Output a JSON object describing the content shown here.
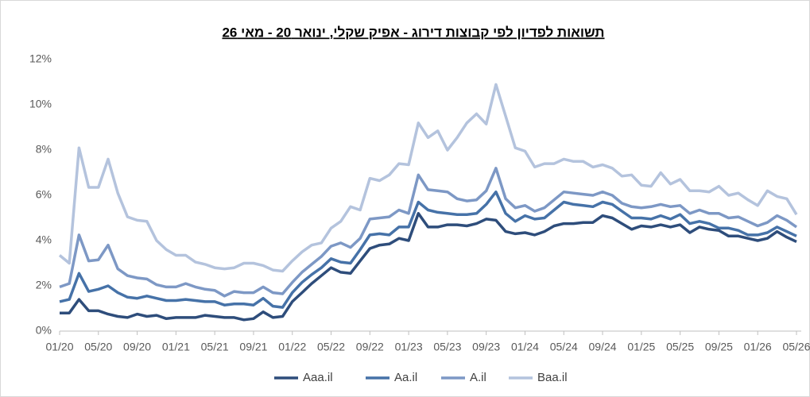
{
  "chart_data": {
    "type": "line",
    "title": "תשואות לפדיון לפי קבוצות דירוג - אפיק שקלי, ינואר 20 - מאי 26",
    "categories": [
      "01/20",
      null,
      null,
      null,
      "05/20",
      null,
      null,
      null,
      "09/20",
      null,
      null,
      null,
      "01/21",
      null,
      null,
      null,
      "05/21",
      null,
      null,
      null,
      "09/21",
      null,
      null,
      null,
      "01/22",
      null,
      null,
      null,
      "05/22",
      null,
      null,
      null,
      "09/22",
      null,
      null,
      null,
      "01/23",
      null,
      null,
      null,
      "05/23",
      null,
      null,
      null,
      "09/23",
      null,
      null,
      null,
      "01/24",
      null,
      null,
      null,
      "05/24",
      null,
      null,
      null,
      "09/24",
      null,
      null,
      null,
      "01/25",
      null,
      null,
      null,
      "05/25",
      null,
      null,
      null,
      "09/25",
      null,
      null,
      null,
      "01/26",
      null,
      null,
      null,
      "05/26"
    ],
    "series": [
      {
        "name": "Aaa.il",
        "color": "#2e4d7b",
        "values": [
          0.8,
          0.8,
          1.4,
          0.9,
          0.9,
          0.75,
          0.65,
          0.6,
          0.75,
          0.65,
          0.7,
          0.55,
          0.6,
          0.6,
          0.6,
          0.7,
          0.65,
          0.6,
          0.6,
          0.5,
          0.55,
          0.85,
          0.6,
          0.65,
          1.3,
          1.7,
          2.1,
          2.45,
          2.8,
          2.6,
          2.55,
          3.1,
          3.65,
          3.8,
          3.85,
          4.1,
          4.0,
          5.2,
          4.6,
          4.6,
          4.7,
          4.7,
          4.65,
          4.75,
          4.95,
          4.9,
          4.4,
          4.3,
          4.35,
          4.25,
          4.4,
          4.65,
          4.75,
          4.75,
          4.8,
          4.8,
          5.1,
          5.0,
          4.75,
          4.5,
          4.65,
          4.6,
          4.7,
          4.6,
          4.7,
          4.35,
          4.6,
          4.5,
          4.45,
          4.2,
          4.2,
          4.1,
          4.0,
          4.1,
          4.4,
          4.15,
          3.95
        ]
      },
      {
        "name": "Aa.il",
        "color": "#4672a8",
        "values": [
          1.3,
          1.4,
          2.55,
          1.75,
          1.85,
          2.0,
          1.7,
          1.5,
          1.45,
          1.55,
          1.45,
          1.35,
          1.35,
          1.4,
          1.35,
          1.3,
          1.3,
          1.15,
          1.2,
          1.2,
          1.15,
          1.45,
          1.1,
          1.05,
          1.7,
          2.15,
          2.5,
          2.8,
          3.2,
          3.05,
          3.0,
          3.6,
          4.25,
          4.3,
          4.25,
          4.6,
          4.6,
          5.7,
          5.35,
          5.25,
          5.2,
          5.15,
          5.15,
          5.2,
          5.6,
          6.15,
          5.2,
          4.85,
          5.1,
          4.95,
          5.0,
          5.35,
          5.7,
          5.6,
          5.55,
          5.5,
          5.7,
          5.6,
          5.3,
          5.0,
          5.0,
          4.95,
          5.1,
          4.95,
          5.15,
          4.75,
          4.85,
          4.75,
          4.55,
          4.55,
          4.45,
          4.25,
          4.25,
          4.35,
          4.6,
          4.4,
          4.2
        ]
      },
      {
        "name": "A.il",
        "color": "#7d98c5",
        "values": [
          1.95,
          2.1,
          4.25,
          3.1,
          3.15,
          3.8,
          2.75,
          2.45,
          2.35,
          2.3,
          2.05,
          1.95,
          1.95,
          2.1,
          1.95,
          1.85,
          1.8,
          1.55,
          1.75,
          1.7,
          1.7,
          1.95,
          1.7,
          1.65,
          2.15,
          2.6,
          2.95,
          3.3,
          3.75,
          3.9,
          3.7,
          4.1,
          4.95,
          5.0,
          5.05,
          5.35,
          5.2,
          6.9,
          6.25,
          6.2,
          6.15,
          5.85,
          5.75,
          5.8,
          6.2,
          7.2,
          5.85,
          5.45,
          5.55,
          5.3,
          5.45,
          5.8,
          6.15,
          6.1,
          6.05,
          6.0,
          6.15,
          6.0,
          5.65,
          5.5,
          5.45,
          5.5,
          5.6,
          5.5,
          5.55,
          5.2,
          5.35,
          5.2,
          5.2,
          5.0,
          5.05,
          4.85,
          4.65,
          4.8,
          5.1,
          4.9,
          4.6
        ]
      },
      {
        "name": "Baa.il",
        "color": "#b4c3dd",
        "values": [
          3.35,
          3.0,
          8.1,
          6.35,
          6.35,
          7.6,
          6.1,
          5.05,
          4.9,
          4.85,
          4.0,
          3.6,
          3.35,
          3.35,
          3.05,
          2.95,
          2.8,
          2.75,
          2.8,
          3.0,
          3.0,
          2.9,
          2.7,
          2.65,
          3.1,
          3.5,
          3.8,
          3.9,
          4.55,
          4.85,
          5.5,
          5.35,
          6.75,
          6.65,
          6.9,
          7.4,
          7.35,
          9.2,
          8.55,
          8.85,
          8.0,
          8.55,
          9.2,
          9.6,
          9.15,
          10.9,
          9.5,
          8.1,
          7.95,
          7.25,
          7.4,
          7.4,
          7.6,
          7.5,
          7.5,
          7.25,
          7.35,
          7.2,
          6.85,
          6.9,
          6.45,
          6.4,
          7.0,
          6.5,
          6.7,
          6.2,
          6.2,
          6.15,
          6.4,
          6.0,
          6.1,
          5.8,
          5.55,
          6.2,
          5.95,
          5.85,
          5.15
        ]
      }
    ],
    "ylim": [
      0,
      12
    ],
    "yticks": [
      {
        "value": 0,
        "label": "0%"
      },
      {
        "value": 2,
        "label": "2%"
      },
      {
        "value": 4,
        "label": "4%"
      },
      {
        "value": 6,
        "label": "6%"
      },
      {
        "value": 8,
        "label": "8%"
      },
      {
        "value": 10,
        "label": "10%"
      },
      {
        "value": 12,
        "label": "12%"
      }
    ],
    "grid": false,
    "legend": "bottom"
  }
}
